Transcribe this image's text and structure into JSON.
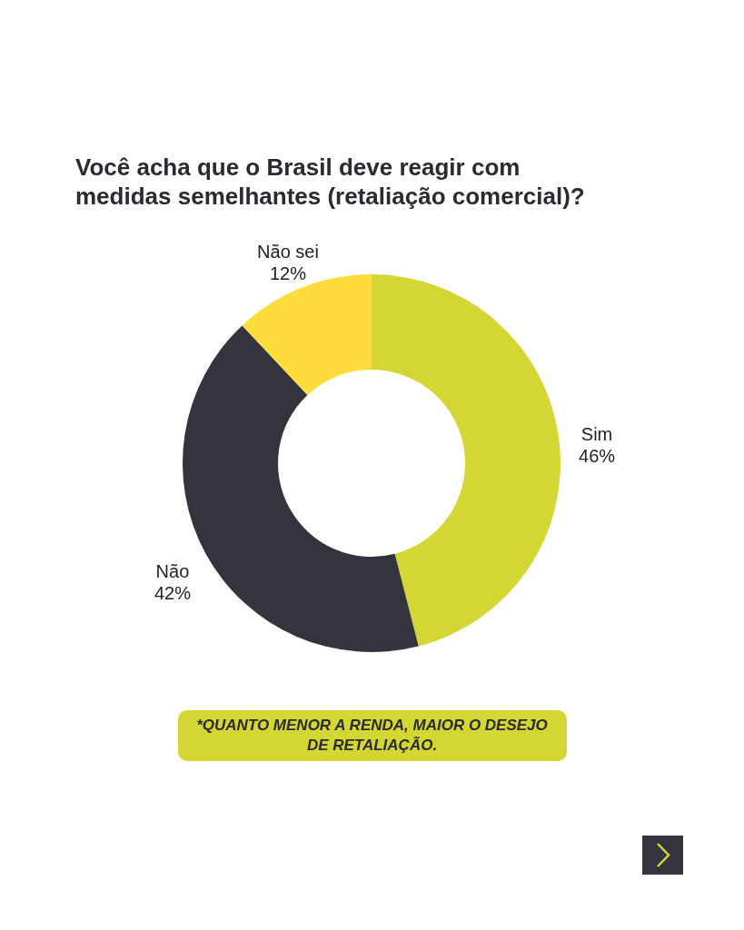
{
  "chart_data": {
    "type": "donut",
    "title": "Você acha que o Brasil deve reagir com medidas semelhantes (retaliação comercial)?",
    "categories": [
      "Sim",
      "Não",
      "Não sei"
    ],
    "values": [
      46,
      42,
      12
    ],
    "value_labels": [
      "46%",
      "42%",
      "12%"
    ],
    "colors": [
      "#d4d733",
      "#34343e",
      "#fddc3c"
    ],
    "annotations": [
      "*QUANTO MENOR A RENDA, MAIOR O DESEJO DE RETALIAÇÃO."
    ]
  }
}
